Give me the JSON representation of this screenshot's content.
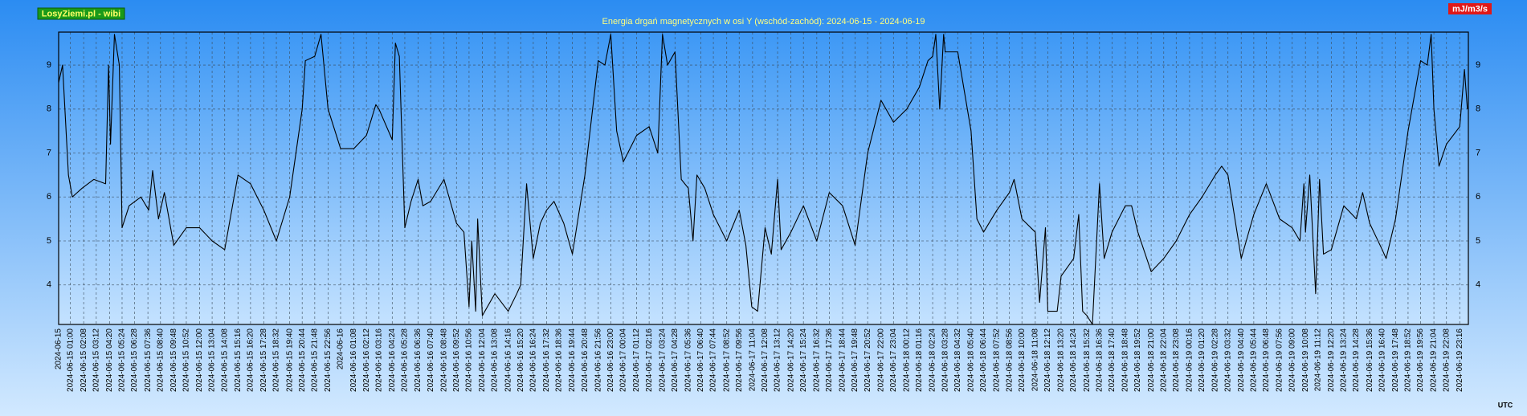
{
  "chart_data": {
    "type": "line",
    "title": "Energia drgań magnetycznych w osi Y (wschód-zachód): 2024-06-15 - 2024-06-19",
    "source_label": "LosyZiemi.pl - wibi",
    "unit_label": "mJ/m3/s",
    "timezone_label": "UTC",
    "color": "#000000",
    "grid": true,
    "ylim": [
      3.1,
      9.75
    ],
    "yticks": [
      4,
      5,
      6,
      7,
      8,
      9
    ],
    "xlim": [
      "2024-06-15 00:00",
      "2024-06-20 00:00"
    ],
    "xticks": [
      "2024-06-15",
      "2024-06-15 01:00",
      "2024-06-15 02:08",
      "2024-06-15 03:12",
      "2024-06-15 04:20",
      "2024-06-15 05:24",
      "2024-06-15 06:28",
      "2024-06-15 07:36",
      "2024-06-15 08:40",
      "2024-06-15 09:48",
      "2024-06-15 10:52",
      "2024-06-15 12:00",
      "2024-06-15 13:04",
      "2024-06-15 14:08",
      "2024-06-15 15:16",
      "2024-06-15 16:20",
      "2024-06-15 17:28",
      "2024-06-15 18:32",
      "2024-06-15 19:40",
      "2024-06-15 20:44",
      "2024-06-15 21:48",
      "2024-06-15 22:56",
      "2024-06-16",
      "2024-06-16 01:08",
      "2024-06-16 02:12",
      "2024-06-16 03:16",
      "2024-06-16 04:24",
      "2024-06-16 05:28",
      "2024-06-16 06:36",
      "2024-06-16 07:40",
      "2024-06-16 08:48",
      "2024-06-16 09:52",
      "2024-06-16 10:56",
      "2024-06-16 12:04",
      "2024-06-16 13:08",
      "2024-06-16 14:16",
      "2024-06-16 15:20",
      "2024-06-16 16:24",
      "2024-06-16 17:32",
      "2024-06-16 18:36",
      "2024-06-16 19:44",
      "2024-06-16 20:48",
      "2024-06-16 21:56",
      "2024-06-16 23:00",
      "2024-06-17 00:04",
      "2024-06-17 01:12",
      "2024-06-17 02:16",
      "2024-06-17 03:24",
      "2024-06-17 04:28",
      "2024-06-17 05:36",
      "2024-06-17 06:40",
      "2024-06-17 07:44",
      "2024-06-17 08:52",
      "2024-06-17 09:56",
      "2024-06-17 11:04",
      "2024-06-17 12:08",
      "2024-06-17 13:12",
      "2024-06-17 14:20",
      "2024-06-17 15:24",
      "2024-06-17 16:32",
      "2024-06-17 17:36",
      "2024-06-17 18:44",
      "2024-06-17 19:48",
      "2024-06-17 20:52",
      "2024-06-17 22:00",
      "2024-06-17 23:04",
      "2024-06-18 00:12",
      "2024-06-18 01:16",
      "2024-06-18 02:24",
      "2024-06-18 03:28",
      "2024-06-18 04:32",
      "2024-06-18 05:40",
      "2024-06-18 06:44",
      "2024-06-18 07:52",
      "2024-06-18 08:56",
      "2024-06-18 10:00",
      "2024-06-18 11:08",
      "2024-06-18 12:12",
      "2024-06-18 13:20",
      "2024-06-18 14:24",
      "2024-06-18 15:32",
      "2024-06-18 16:36",
      "2024-06-18 17:40",
      "2024-06-18 18:48",
      "2024-06-18 19:52",
      "2024-06-18 21:00",
      "2024-06-18 22:04",
      "2024-06-18 23:08",
      "2024-06-19 00:16",
      "2024-06-19 01:20",
      "2024-06-19 02:28",
      "2024-06-19 03:32",
      "2024-06-19 04:40",
      "2024-06-19 05:44",
      "2024-06-19 06:48",
      "2024-06-19 07:56",
      "2024-06-19 09:00",
      "2024-06-19 10:08",
      "2024-06-19 11:12",
      "2024-06-19 12:20",
      "2024-06-19 13:24",
      "2024-06-19 14:28",
      "2024-06-19 15:36",
      "2024-06-19 16:40",
      "2024-06-19 17:48",
      "2024-06-19 18:52",
      "2024-06-19 19:56",
      "2024-06-19 21:04",
      "2024-06-19 22:08",
      "2024-06-19 23:16"
    ],
    "x": [
      "2024-06-15 00:00",
      "2024-06-15 00:20",
      "2024-06-15 00:50",
      "2024-06-15 01:10",
      "2024-06-15 02:00",
      "2024-06-15 03:00",
      "2024-06-15 04:00",
      "2024-06-15 04:15",
      "2024-06-15 04:25",
      "2024-06-15 04:45",
      "2024-06-15 05:10",
      "2024-06-15 05:24",
      "2024-06-15 06:00",
      "2024-06-15 07:00",
      "2024-06-15 07:40",
      "2024-06-15 08:00",
      "2024-06-15 08:30",
      "2024-06-15 09:00",
      "2024-06-15 09:48",
      "2024-06-15 10:52",
      "2024-06-15 12:00",
      "2024-06-15 13:04",
      "2024-06-15 14:08",
      "2024-06-15 15:16",
      "2024-06-15 16:20",
      "2024-06-15 17:28",
      "2024-06-15 18:32",
      "2024-06-15 19:40",
      "2024-06-15 20:44",
      "2024-06-15 21:00",
      "2024-06-15 21:48",
      "2024-06-15 22:20",
      "2024-06-15 22:56",
      "2024-06-16 00:00",
      "2024-06-16 01:08",
      "2024-06-16 02:12",
      "2024-06-16 03:00",
      "2024-06-16 03:16",
      "2024-06-16 04:24",
      "2024-06-16 04:40",
      "2024-06-16 05:00",
      "2024-06-16 05:28",
      "2024-06-16 06:00",
      "2024-06-16 06:36",
      "2024-06-16 07:00",
      "2024-06-16 07:40",
      "2024-06-16 08:48",
      "2024-06-16 09:52",
      "2024-06-16 10:30",
      "2024-06-16 10:56",
      "2024-06-16 11:10",
      "2024-06-16 11:30",
      "2024-06-16 11:40",
      "2024-06-16 12:04",
      "2024-06-16 13:08",
      "2024-06-16 14:16",
      "2024-06-16 15:00",
      "2024-06-16 15:20",
      "2024-06-16 15:50",
      "2024-06-16 16:24",
      "2024-06-16 17:00",
      "2024-06-16 17:32",
      "2024-06-16 18:10",
      "2024-06-16 19:00",
      "2024-06-16 19:44",
      "2024-06-16 20:48",
      "2024-06-16 21:56",
      "2024-06-16 22:30",
      "2024-06-16 23:00",
      "2024-06-16 23:30",
      "2024-06-17 00:04",
      "2024-06-17 01:12",
      "2024-06-17 02:16",
      "2024-06-17 03:00",
      "2024-06-17 03:24",
      "2024-06-17 03:50",
      "2024-06-17 04:28",
      "2024-06-17 05:00",
      "2024-06-17 05:36",
      "2024-06-17 06:00",
      "2024-06-17 06:20",
      "2024-06-17 07:00",
      "2024-06-17 07:44",
      "2024-06-17 08:52",
      "2024-06-17 09:56",
      "2024-06-17 10:30",
      "2024-06-17 11:00",
      "2024-06-17 11:30",
      "2024-06-17 12:08",
      "2024-06-17 12:40",
      "2024-06-17 13:12",
      "2024-06-17 13:30",
      "2024-06-17 14:20",
      "2024-06-17 15:24",
      "2024-06-17 16:32",
      "2024-06-17 17:36",
      "2024-06-17 18:44",
      "2024-06-17 19:48",
      "2024-06-17 20:52",
      "2024-06-17 22:00",
      "2024-06-17 23:04",
      "2024-06-18 00:12",
      "2024-06-18 01:16",
      "2024-06-18 02:00",
      "2024-06-18 02:24",
      "2024-06-18 02:40",
      "2024-06-18 03:00",
      "2024-06-18 03:20",
      "2024-06-18 03:28",
      "2024-06-18 04:32",
      "2024-06-18 05:40",
      "2024-06-18 06:10",
      "2024-06-18 06:44",
      "2024-06-18 07:52",
      "2024-06-18 08:56",
      "2024-06-18 09:20",
      "2024-06-18 10:00",
      "2024-06-18 11:08",
      "2024-06-18 11:30",
      "2024-06-18 12:00",
      "2024-06-18 12:12",
      "2024-06-18 13:00",
      "2024-06-18 13:20",
      "2024-06-18 14:24",
      "2024-06-18 14:50",
      "2024-06-18 15:10",
      "2024-06-18 15:32",
      "2024-06-18 16:00",
      "2024-06-18 16:36",
      "2024-06-18 17:00",
      "2024-06-18 17:40",
      "2024-06-18 18:48",
      "2024-06-18 19:20",
      "2024-06-18 19:52",
      "2024-06-18 21:00",
      "2024-06-18 22:04",
      "2024-06-18 23:08",
      "2024-06-19 00:16",
      "2024-06-19 01:20",
      "2024-06-19 02:28",
      "2024-06-19 03:00",
      "2024-06-19 03:32",
      "2024-06-19 04:40",
      "2024-06-19 05:44",
      "2024-06-19 06:48",
      "2024-06-19 07:56",
      "2024-06-19 09:00",
      "2024-06-19 09:40",
      "2024-06-19 10:00",
      "2024-06-19 10:08",
      "2024-06-19 10:30",
      "2024-06-19 11:00",
      "2024-06-19 11:20",
      "2024-06-19 11:40",
      "2024-06-19 12:20",
      "2024-06-19 13:24",
      "2024-06-19 14:28",
      "2024-06-19 15:00",
      "2024-06-19 15:36",
      "2024-06-19 16:40",
      "2024-06-19 17:00",
      "2024-06-19 17:48",
      "2024-06-19 18:52",
      "2024-06-19 19:56",
      "2024-06-19 20:30",
      "2024-06-19 20:50",
      "2024-06-19 21:04",
      "2024-06-19 21:30",
      "2024-06-19 22:08",
      "2024-06-19 23:16",
      "2024-06-19 23:40",
      "2024-06-19 23:55"
    ],
    "values": [
      8.6,
      9.0,
      6.5,
      6.0,
      6.2,
      6.4,
      6.3,
      9.0,
      7.2,
      9.7,
      9.0,
      5.3,
      5.8,
      6.0,
      5.7,
      6.6,
      5.5,
      6.1,
      4.9,
      5.3,
      5.3,
      5.0,
      4.8,
      6.5,
      6.3,
      5.7,
      5.0,
      6.0,
      8.0,
      9.1,
      9.2,
      9.7,
      8.0,
      7.1,
      7.1,
      7.4,
      8.1,
      8.0,
      7.3,
      9.5,
      9.2,
      5.3,
      5.9,
      6.4,
      5.8,
      5.9,
      6.4,
      5.4,
      5.2,
      3.5,
      5.0,
      3.4,
      5.5,
      3.3,
      3.8,
      3.4,
      3.8,
      4.0,
      6.3,
      4.6,
      5.4,
      5.7,
      5.9,
      5.4,
      4.7,
      6.5,
      9.1,
      9.0,
      9.7,
      7.5,
      6.8,
      7.4,
      7.6,
      7.0,
      9.7,
      9.0,
      9.3,
      6.4,
      6.2,
      5.0,
      6.5,
      6.2,
      5.6,
      5.0,
      5.7,
      4.9,
      3.5,
      3.4,
      5.3,
      4.7,
      6.4,
      4.8,
      5.2,
      5.8,
      5.0,
      6.1,
      5.8,
      4.9,
      7.0,
      8.2,
      7.7,
      8.0,
      8.5,
      9.1,
      9.2,
      9.7,
      8.0,
      9.7,
      9.3,
      9.3,
      7.5,
      5.5,
      5.2,
      5.7,
      6.1,
      6.4,
      5.5,
      5.2,
      3.6,
      5.3,
      3.4,
      3.4,
      4.2,
      4.6,
      5.6,
      3.4,
      3.3,
      3.1,
      6.3,
      4.6,
      5.2,
      5.8,
      5.8,
      5.2,
      4.3,
      4.6,
      5.0,
      5.6,
      6.0,
      6.5,
      6.7,
      6.5,
      4.6,
      5.6,
      6.3,
      5.5,
      5.3,
      5.0,
      6.3,
      5.2,
      6.5,
      3.8,
      6.4,
      4.7,
      4.8,
      5.8,
      5.5,
      6.1,
      5.4,
      4.8,
      4.6,
      5.5,
      7.5,
      9.1,
      9.0,
      9.7,
      8.0,
      6.7,
      7.2,
      7.6,
      8.9,
      8.0
    ]
  }
}
